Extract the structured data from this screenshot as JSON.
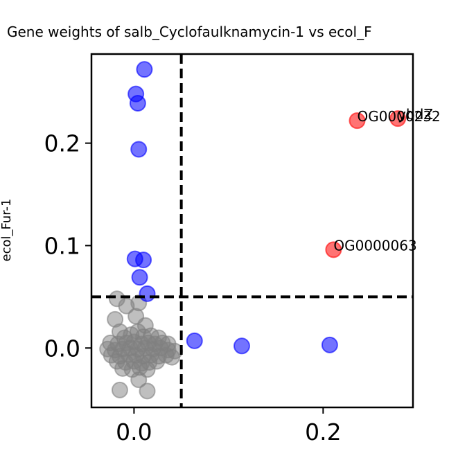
{
  "chart_data": {
    "type": "scatter",
    "title": "Gene weights of salb_Cyclofaulknamycin-1 vs ecol_F",
    "xlabel": "",
    "ylabel": "ecol_Fur-1",
    "xlim": [
      -0.045,
      0.295
    ],
    "ylim": [
      -0.058,
      0.287
    ],
    "xticks": [
      0.0,
      0.2
    ],
    "xtick_labels": [
      "0.0",
      "0.2"
    ],
    "yticks": [
      0.0,
      0.1,
      0.2
    ],
    "ytick_labels": [
      "0.0",
      "0.1",
      "0.2"
    ],
    "thresholds": {
      "x": 0.05,
      "y": 0.05
    },
    "colors": {
      "gray": "#808080",
      "blue": "#0000ff",
      "red": "#ff0000"
    },
    "series": [
      {
        "color": "red",
        "points": [
          {
            "x": 0.236,
            "y": 0.222
          },
          {
            "x": 0.279,
            "y": 0.224
          },
          {
            "x": 0.211,
            "y": 0.096
          }
        ]
      },
      {
        "color": "blue",
        "points": [
          {
            "x": 0.011,
            "y": 0.272
          },
          {
            "x": 0.002,
            "y": 0.248
          },
          {
            "x": 0.004,
            "y": 0.239
          },
          {
            "x": 0.005,
            "y": 0.194
          },
          {
            "x": 0.001,
            "y": 0.087
          },
          {
            "x": 0.01,
            "y": 0.086
          },
          {
            "x": 0.006,
            "y": 0.069
          },
          {
            "x": 0.014,
            "y": 0.053
          },
          {
            "x": 0.064,
            "y": 0.007
          },
          {
            "x": 0.114,
            "y": 0.002
          },
          {
            "x": 0.207,
            "y": 0.003
          }
        ]
      },
      {
        "color": "gray",
        "points": [
          {
            "x": -0.018,
            "y": 0.048
          },
          {
            "x": -0.008,
            "y": 0.041
          },
          {
            "x": 0.005,
            "y": 0.044
          },
          {
            "x": -0.02,
            "y": 0.028
          },
          {
            "x": 0.002,
            "y": 0.031
          },
          {
            "x": 0.012,
            "y": 0.022
          },
          {
            "x": -0.015,
            "y": 0.016
          },
          {
            "x": -0.01,
            "y": 0.01
          },
          {
            "x": -0.003,
            "y": 0.013
          },
          {
            "x": 0.004,
            "y": 0.016
          },
          {
            "x": 0.01,
            "y": 0.011
          },
          {
            "x": 0.018,
            "y": 0.012
          },
          {
            "x": 0.026,
            "y": 0.01
          },
          {
            "x": -0.025,
            "y": 0.005
          },
          {
            "x": -0.017,
            "y": 0.004
          },
          {
            "x": -0.008,
            "y": 0.005
          },
          {
            "x": 0.0,
            "y": 0.006
          },
          {
            "x": 0.008,
            "y": 0.004
          },
          {
            "x": 0.015,
            "y": 0.005
          },
          {
            "x": 0.022,
            "y": 0.004
          },
          {
            "x": 0.03,
            "y": 0.005
          },
          {
            "x": 0.036,
            "y": 0.004
          },
          {
            "x": -0.028,
            "y": -0.001
          },
          {
            "x": -0.02,
            "y": -0.002
          },
          {
            "x": -0.012,
            "y": -0.001
          },
          {
            "x": -0.004,
            "y": 0.0
          },
          {
            "x": 0.004,
            "y": -0.001
          },
          {
            "x": 0.012,
            "y": 0.0
          },
          {
            "x": 0.02,
            "y": -0.001
          },
          {
            "x": 0.028,
            "y": 0.0
          },
          {
            "x": 0.036,
            "y": -0.002
          },
          {
            "x": 0.043,
            "y": -0.003
          },
          {
            "x": -0.024,
            "y": -0.007
          },
          {
            "x": -0.015,
            "y": -0.008
          },
          {
            "x": -0.006,
            "y": -0.006
          },
          {
            "x": 0.002,
            "y": -0.007
          },
          {
            "x": 0.01,
            "y": -0.008
          },
          {
            "x": 0.018,
            "y": -0.007
          },
          {
            "x": 0.026,
            "y": -0.008
          },
          {
            "x": 0.034,
            "y": -0.007
          },
          {
            "x": 0.04,
            "y": -0.009
          },
          {
            "x": -0.018,
            "y": -0.013
          },
          {
            "x": -0.009,
            "y": -0.014
          },
          {
            "x": 0.0,
            "y": -0.013
          },
          {
            "x": 0.008,
            "y": -0.015
          },
          {
            "x": 0.016,
            "y": -0.014
          },
          {
            "x": 0.024,
            "y": -0.013
          },
          {
            "x": -0.012,
            "y": -0.02
          },
          {
            "x": -0.002,
            "y": -0.021
          },
          {
            "x": 0.006,
            "y": -0.019
          },
          {
            "x": 0.014,
            "y": -0.021
          },
          {
            "x": 0.005,
            "y": -0.031
          },
          {
            "x": -0.015,
            "y": -0.041
          },
          {
            "x": 0.014,
            "y": -0.042
          }
        ]
      }
    ],
    "annotations": [
      {
        "text": "OG0000232",
        "x": 0.236,
        "y": 0.222
      },
      {
        "text": "ybdZ",
        "x": 0.279,
        "y": 0.224
      },
      {
        "text": "OG0000063",
        "x": 0.211,
        "y": 0.096
      }
    ]
  }
}
